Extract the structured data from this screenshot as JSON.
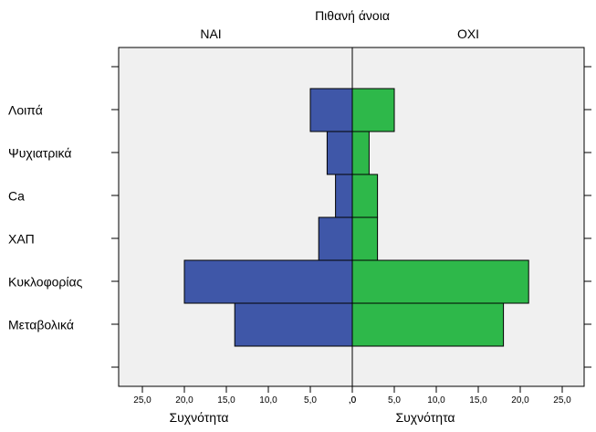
{
  "chart_data": {
    "type": "bar",
    "orientation": "horizontal-population-pyramid",
    "title": "Πιθανή  άνοια",
    "panels": [
      {
        "name": "ΝΑΙ",
        "side": "left",
        "xlabel": "Συχνότητα"
      },
      {
        "name": "ΟΧΙ",
        "side": "right",
        "xlabel": "Συχνότητα"
      }
    ],
    "categories": [
      "Λοιπά",
      "Ψυχιατρικά",
      "Ca",
      "ΧΑΠ",
      "Κυκλοφορίας",
      "Μεταβολικά"
    ],
    "series": [
      {
        "name": "ΝΑΙ",
        "values": [
          5,
          3,
          2,
          4,
          20,
          14
        ]
      },
      {
        "name": "ΟΧΙ",
        "values": [
          5,
          2,
          3,
          3,
          21,
          18
        ]
      }
    ],
    "xlim": [
      0,
      27
    ],
    "xticks": [
      25,
      20,
      15,
      10,
      5,
      0
    ],
    "tick_labels": [
      "25,0",
      "20,0",
      "15,0",
      "10,0",
      "5,0",
      ",0"
    ],
    "right_tick_labels": [
      ",0",
      "5,0",
      "10,0",
      "15,0",
      "20,0",
      "25,0"
    ],
    "grid": false,
    "colors": {
      "ΝΑΙ": "#3f57a8",
      "ΟΧΙ": "#2eb84a",
      "background": "#f0f0f0"
    }
  }
}
